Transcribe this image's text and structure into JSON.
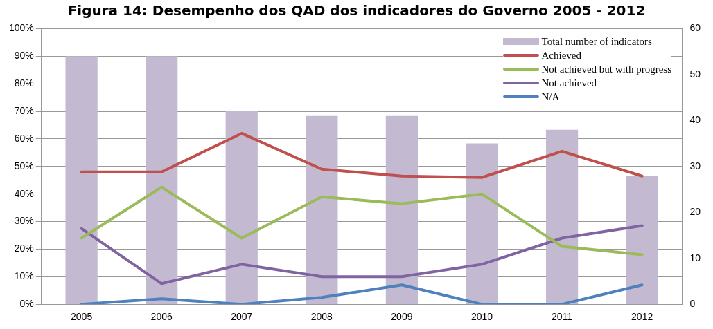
{
  "chart_data": {
    "type": "line",
    "title": "Figura 14: Desempenho dos QAD dos indicadores do Governo 2005 - 2012",
    "categories": [
      "2005",
      "2006",
      "2007",
      "2008",
      "2009",
      "2010",
      "2011",
      "2012"
    ],
    "series": [
      {
        "name": "Total number of indicators",
        "type": "bar",
        "axis": "y2",
        "color": "#c3b9d0",
        "values": [
          54,
          54,
          42,
          41,
          41,
          35,
          38,
          28
        ]
      },
      {
        "name": "Achieved",
        "color": "#c0504d",
        "values": [
          48,
          48,
          62,
          49,
          46.5,
          46,
          55.5,
          46.5
        ]
      },
      {
        "name": "Not achieved but with progress",
        "color": "#9bbb59",
        "values": [
          24,
          42.5,
          24,
          39,
          36.5,
          40,
          21,
          18
        ]
      },
      {
        "name": "Not achieved",
        "color": "#8064a2",
        "values": [
          27.5,
          7.5,
          14.5,
          10,
          10,
          14.5,
          24,
          28.5
        ]
      },
      {
        "name": "N/A",
        "color": "#4f81bd",
        "values": [
          0,
          2,
          0,
          2.5,
          7,
          0,
          0,
          7
        ]
      }
    ],
    "ylim": [
      0,
      100
    ],
    "yticks": [
      {
        "value": 0,
        "label": "0%"
      },
      {
        "value": 10,
        "label": "10%"
      },
      {
        "value": 20,
        "label": "20%"
      },
      {
        "value": 30,
        "label": "30%"
      },
      {
        "value": 40,
        "label": "40%"
      },
      {
        "value": 50,
        "label": "50%"
      },
      {
        "value": 60,
        "label": "60%"
      },
      {
        "value": 70,
        "label": "70%"
      },
      {
        "value": 80,
        "label": "80%"
      },
      {
        "value": 90,
        "label": "90%"
      },
      {
        "value": 100,
        "label": "100%"
      }
    ],
    "y2lim": [
      0,
      60
    ],
    "y2ticks": [
      0,
      10,
      20,
      30,
      40,
      50,
      60
    ],
    "grid": "y",
    "legend": "top right",
    "marker": "none",
    "line_style": "solid"
  }
}
